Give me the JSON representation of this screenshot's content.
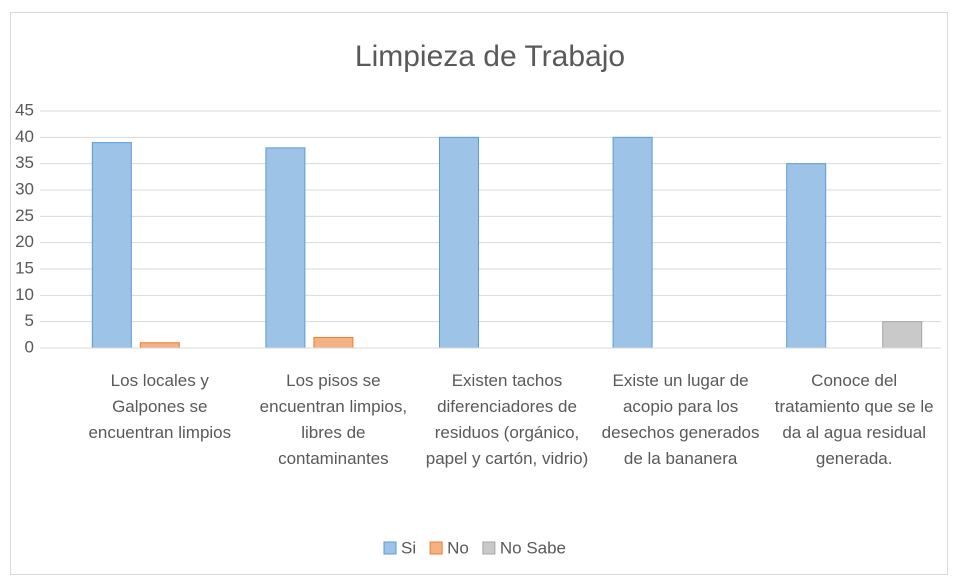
{
  "chart_data": {
    "type": "bar",
    "title": "Limpieza de Trabajo",
    "categories": [
      "Los locales y Galpones se encuentran limpios",
      "Los pisos se encuentran limpios, libres de contaminantes",
      "Existen tachos diferenciadores de residuos (orgánico, papel y cartón, vidrio)",
      "Existe un lugar de acopio para los desechos generados de la bananera",
      "Conoce del tratamiento que se le da al agua residual generada."
    ],
    "series": [
      {
        "name": "Si",
        "color": "#9dc3e6",
        "values": [
          39,
          38,
          40,
          40,
          35
        ]
      },
      {
        "name": "No",
        "color": "#f4b183",
        "values": [
          1,
          2,
          0,
          0,
          0
        ]
      },
      {
        "name": "No Sabe",
        "color": "#c9c9c9",
        "values": [
          0,
          0,
          0,
          0,
          5
        ]
      }
    ],
    "ylim": [
      0,
      45
    ],
    "yticks": [
      0,
      5,
      10,
      15,
      20,
      25,
      30,
      35,
      40,
      45
    ],
    "grid": true,
    "legend": "bottom"
  }
}
